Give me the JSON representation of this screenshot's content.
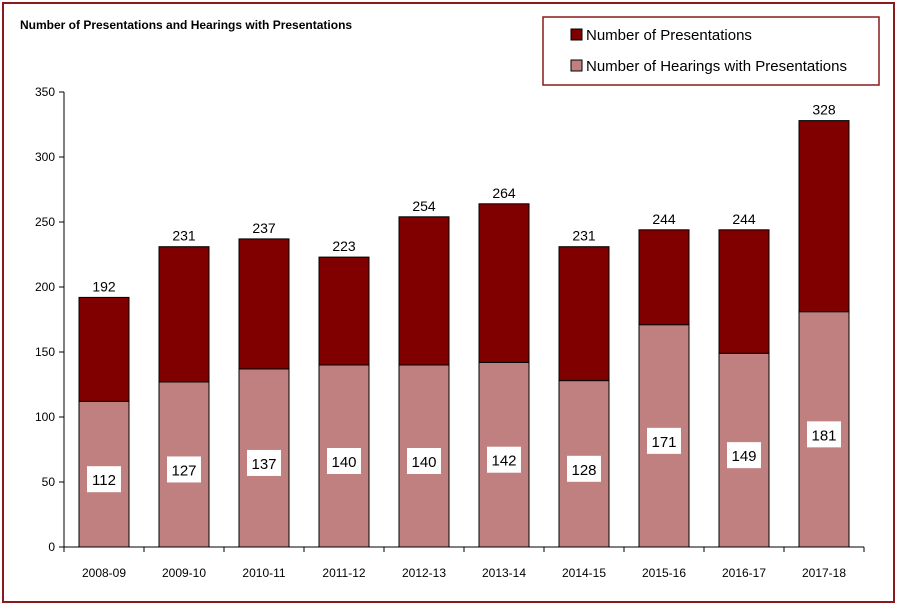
{
  "chart_data": {
    "type": "bar",
    "stacked": true,
    "title": "Number of Presentations and Hearings with Presentations",
    "xlabel": "",
    "ylabel": "",
    "ylim": [
      0,
      350
    ],
    "yticks": [
      0,
      50,
      100,
      150,
      200,
      250,
      300,
      350
    ],
    "categories": [
      "2008-09",
      "2009-10",
      "2010-11",
      "2011-12",
      "2012-13",
      "2013-14",
      "2014-15",
      "2015-16",
      "2016-17",
      "2017-18"
    ],
    "series": [
      {
        "name": "Number of Hearings with Presentations",
        "color": "#c08080",
        "values": [
          112,
          127,
          137,
          140,
          140,
          142,
          128,
          171,
          149,
          181
        ]
      },
      {
        "name": "Number of Presentations",
        "color": "#800000",
        "totals": [
          192,
          231,
          237,
          223,
          254,
          264,
          231,
          244,
          244,
          328
        ]
      }
    ],
    "legend": {
      "position": "top-right",
      "entries": [
        "Number of Presentations",
        "Number of Hearings with Presentations"
      ]
    },
    "grid": false
  },
  "colors": {
    "frame_border": "#8b1a1a",
    "bar_border": "#000000",
    "label_box_bg": "#ffffff"
  }
}
